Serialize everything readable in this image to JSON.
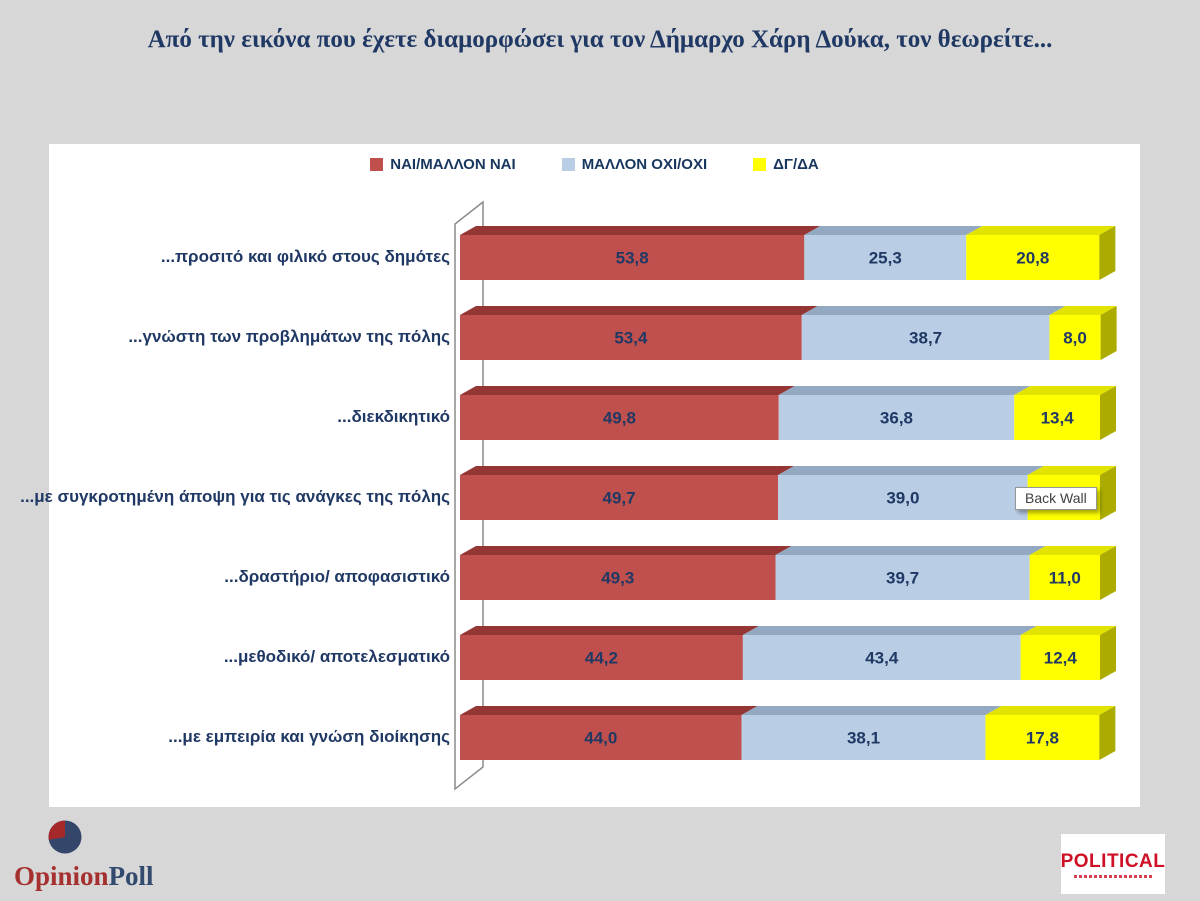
{
  "page": {
    "background": "#D7D7D7"
  },
  "title": "Από την εικόνα που έχετε διαμορφώσει για τον Δήμαρχο Χάρη Δούκα, τον θεωρείτε...",
  "tooltip": {
    "label": "Back Wall"
  },
  "chart_data": {
    "type": "bar",
    "orientation": "horizontal",
    "stacked": true,
    "style": "3d",
    "unit": "percent",
    "decimal_separator": ",",
    "xlim": [
      0,
      100
    ],
    "legend_position": "top",
    "legend": [
      {
        "label": "ΝΑΙ/ΜΑΛΛΟΝ ΝΑΙ",
        "color": "#C0504D"
      },
      {
        "label": "ΜΑΛΛΟΝ ΟΧΙ/ΟΧΙ",
        "color": "#B9CDE5"
      },
      {
        "label": "ΔΓ/ΔΑ",
        "color": "#FFFF00"
      }
    ],
    "categories": [
      "...προσιτό και φιλικό στους δημότες",
      "...γνώστη των προβλημάτων της πόλης",
      "...διεκδικητικό",
      "...με συγκροτημένη άποψη για τις ανάγκες της πόλης",
      "...δραστήριο/ αποφασιστικό",
      "...μεθοδικό/ αποτελεσματικό",
      "...με εμπειρία και γνώση διοίκησης"
    ],
    "series": [
      {
        "name": "ΝΑΙ/ΜΑΛΛΟΝ ΝΑΙ",
        "values": [
          53.8,
          53.4,
          49.8,
          49.7,
          49.3,
          44.2,
          44.0
        ]
      },
      {
        "name": "ΜΑΛΛΟΝ ΟΧΙ/ΟΧΙ",
        "values": [
          25.3,
          38.7,
          36.8,
          39.0,
          39.7,
          43.4,
          38.1
        ]
      },
      {
        "name": "ΔΓ/ΔΑ",
        "values": [
          20.8,
          8.0,
          13.4,
          null,
          11.0,
          12.4,
          17.8
        ]
      }
    ],
    "colors": {
      "nai": {
        "front": "#C0504D",
        "top": "#943634"
      },
      "oxi": {
        "front": "#B9CDE5",
        "top": "#93A9C2"
      },
      "dg": {
        "front": "#FFFF00",
        "top": "#E3E300",
        "side": "#ABAB00"
      },
      "value_text": "#1F3864",
      "wall_stroke": "#8C8C8C"
    }
  },
  "footer": {
    "opinionpoll": {
      "word1": "Opinion",
      "word2": "Poll",
      "pie_main_color": "#35466B",
      "pie_slice_color": "#A5282B"
    },
    "political": {
      "label": "POLITICAL",
      "color": "#CE1126"
    }
  }
}
